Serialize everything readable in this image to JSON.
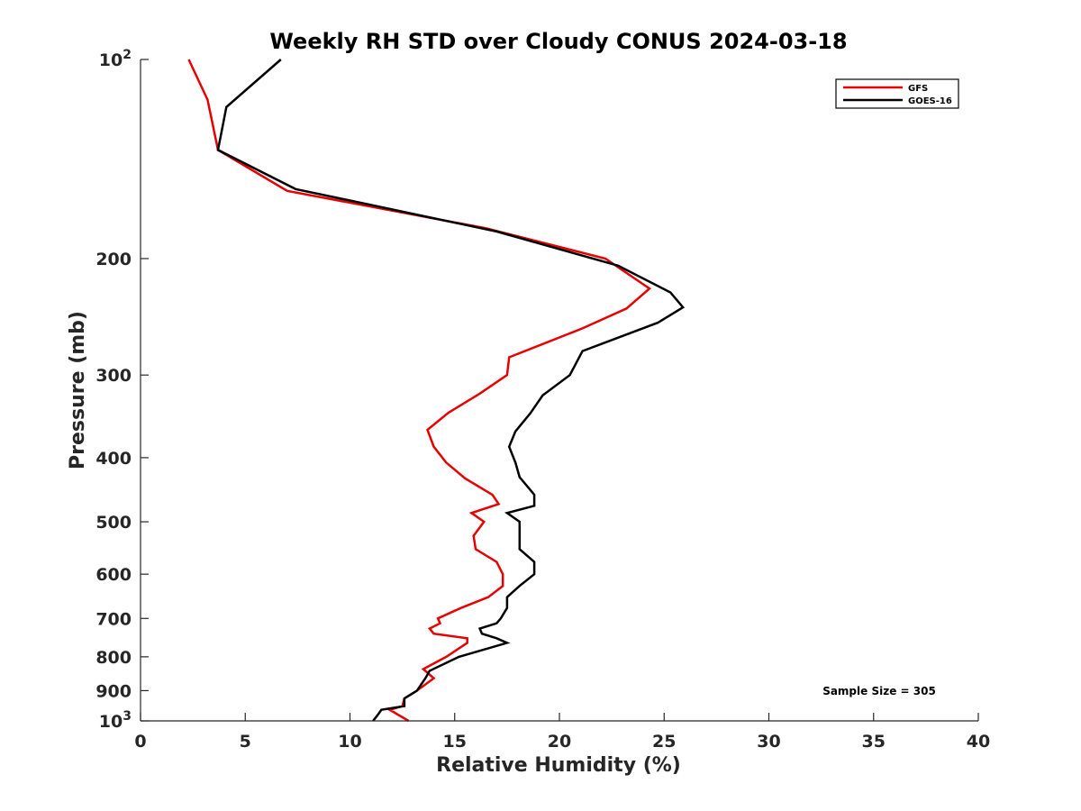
{
  "chart_data": {
    "type": "line",
    "title": "Weekly RH STD over Cloudy CONUS 2024-03-18",
    "xlabel": "Relative Humidity (%)",
    "ylabel": "Pressure (mb)",
    "xlim": [
      0,
      40
    ],
    "ylim": [
      100,
      1000
    ],
    "y_scale": "log",
    "y_reversed": true,
    "grid": false,
    "legend_position": "top-right",
    "x_ticks": [
      0,
      5,
      10,
      15,
      20,
      25,
      30,
      35,
      40
    ],
    "y_ticks": [
      {
        "value": 100,
        "label": "10",
        "sup": "2"
      },
      {
        "value": 200,
        "label": "200"
      },
      {
        "value": 300,
        "label": "300"
      },
      {
        "value": 400,
        "label": "400"
      },
      {
        "value": 500,
        "label": "500"
      },
      {
        "value": 600,
        "label": "600"
      },
      {
        "value": 700,
        "label": "700"
      },
      {
        "value": 800,
        "label": "800"
      },
      {
        "value": 900,
        "label": "900"
      },
      {
        "value": 1000,
        "label": "10",
        "sup": "3"
      }
    ],
    "annotation": "Sample Size = 305",
    "series": [
      {
        "name": "GFS",
        "color": "#e60000",
        "points": [
          [
            2.3,
            100
          ],
          [
            3.2,
            115
          ],
          [
            3.7,
            137
          ],
          [
            7.0,
            158
          ],
          [
            16.5,
            180
          ],
          [
            22.2,
            200
          ],
          [
            24.3,
            222
          ],
          [
            23.2,
            238
          ],
          [
            21.1,
            255
          ],
          [
            17.6,
            282
          ],
          [
            17.5,
            300
          ],
          [
            16.2,
            320
          ],
          [
            14.7,
            342
          ],
          [
            13.7,
            363
          ],
          [
            14.0,
            385
          ],
          [
            14.6,
            407
          ],
          [
            15.5,
            430
          ],
          [
            16.8,
            455
          ],
          [
            17.1,
            470
          ],
          [
            15.8,
            485
          ],
          [
            16.4,
            500
          ],
          [
            15.9,
            525
          ],
          [
            16.0,
            550
          ],
          [
            17.0,
            575
          ],
          [
            17.3,
            600
          ],
          [
            17.3,
            625
          ],
          [
            16.6,
            650
          ],
          [
            15.3,
            675
          ],
          [
            14.2,
            700
          ],
          [
            14.3,
            712
          ],
          [
            13.8,
            725
          ],
          [
            14.0,
            738
          ],
          [
            15.6,
            750
          ],
          [
            15.6,
            762
          ],
          [
            14.6,
            800
          ],
          [
            13.5,
            835
          ],
          [
            14.0,
            862
          ],
          [
            13.2,
            900
          ],
          [
            12.6,
            925
          ],
          [
            12.5,
            950
          ],
          [
            11.9,
            962
          ],
          [
            12.8,
            1000
          ]
        ]
      },
      {
        "name": "GOES-16",
        "color": "#000000",
        "points": [
          [
            6.7,
            100
          ],
          [
            4.1,
            118
          ],
          [
            3.7,
            137
          ],
          [
            7.4,
            157
          ],
          [
            17.0,
            182
          ],
          [
            22.8,
            205
          ],
          [
            25.3,
            225
          ],
          [
            25.9,
            237
          ],
          [
            24.7,
            250
          ],
          [
            21.1,
            276
          ],
          [
            20.5,
            300
          ],
          [
            19.2,
            322
          ],
          [
            18.6,
            343
          ],
          [
            17.9,
            365
          ],
          [
            17.6,
            385
          ],
          [
            17.9,
            407
          ],
          [
            18.1,
            428
          ],
          [
            18.8,
            455
          ],
          [
            18.8,
            473
          ],
          [
            17.5,
            485
          ],
          [
            18.1,
            500
          ],
          [
            18.1,
            525
          ],
          [
            18.1,
            550
          ],
          [
            18.8,
            575
          ],
          [
            18.8,
            600
          ],
          [
            18.1,
            625
          ],
          [
            17.5,
            650
          ],
          [
            17.5,
            675
          ],
          [
            17.2,
            700
          ],
          [
            17.0,
            712
          ],
          [
            16.2,
            725
          ],
          [
            16.3,
            738
          ],
          [
            17.0,
            750
          ],
          [
            17.5,
            762
          ],
          [
            15.2,
            800
          ],
          [
            13.8,
            840
          ],
          [
            13.6,
            862
          ],
          [
            13.2,
            900
          ],
          [
            12.6,
            925
          ],
          [
            12.6,
            950
          ],
          [
            11.5,
            962
          ],
          [
            11.3,
            982
          ],
          [
            11.1,
            1000
          ]
        ]
      }
    ]
  }
}
